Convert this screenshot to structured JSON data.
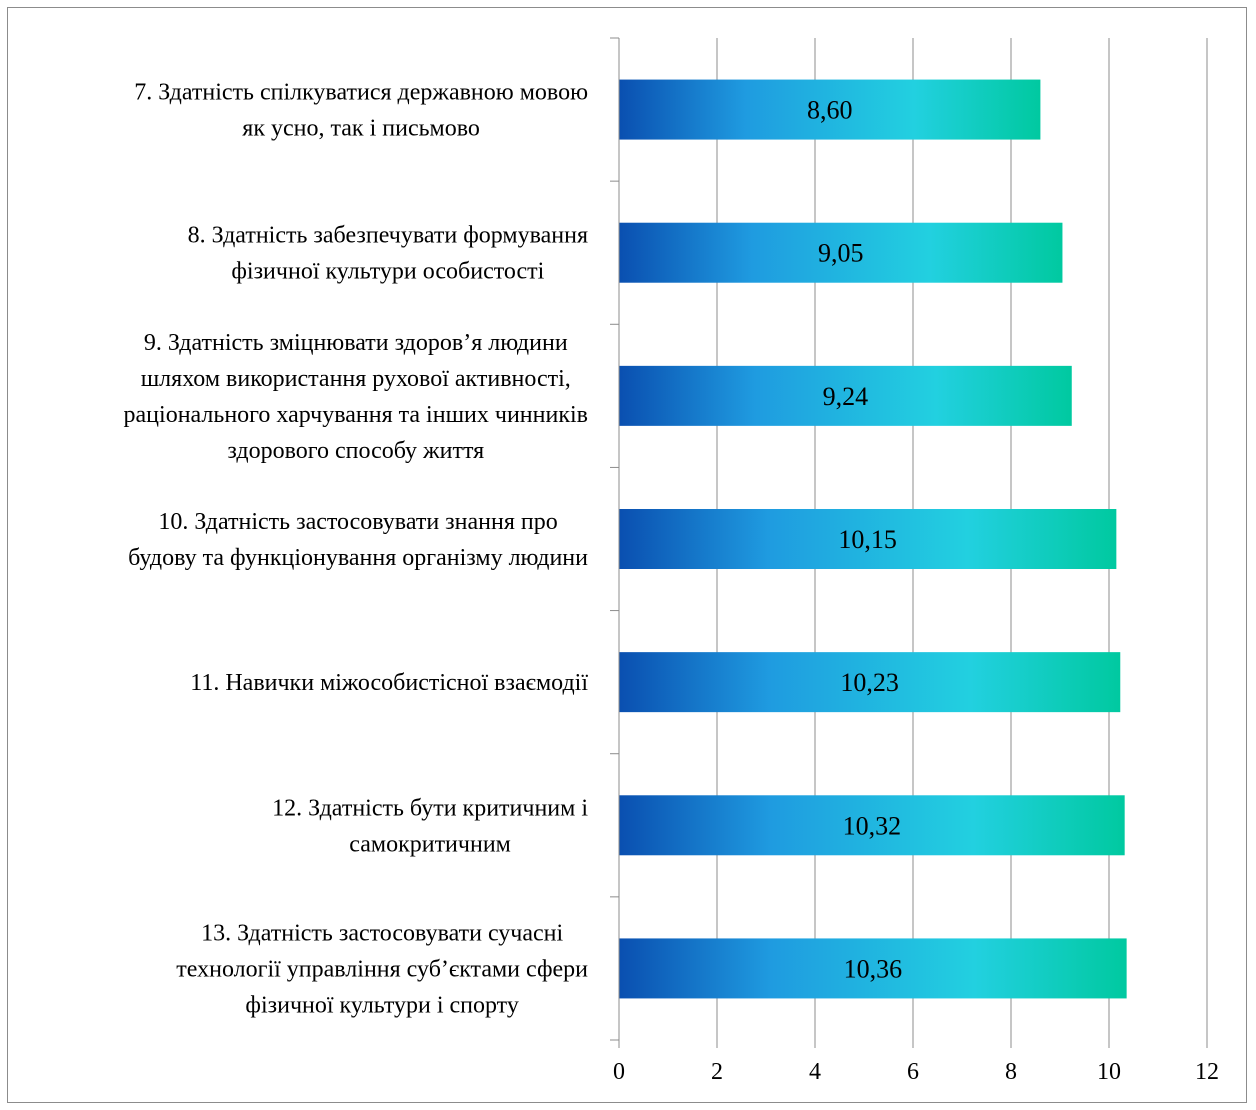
{
  "chart_data": {
    "type": "bar",
    "orientation": "horizontal",
    "title": "",
    "xlabel": "",
    "ylabel": "",
    "xlim": [
      0,
      12
    ],
    "x_ticks": [
      "0",
      "2",
      "4",
      "6",
      "8",
      "10",
      "12"
    ],
    "x_tick_values": [
      0,
      2,
      4,
      6,
      8,
      10,
      12
    ],
    "grid": "vertical",
    "legend": "none",
    "bar_gradient": [
      "#0a4fb0",
      "#1f9be0",
      "#22d0e0",
      "#00c9a0"
    ],
    "categories": [
      [
        "7. Здатність спілкуватися державною мовою",
        "як усно, так і письмово"
      ],
      [
        "8. Здатність забезпечувати формування",
        "фізичної культури особистості"
      ],
      [
        "9. Здатність зміцнювати здоров’я людини",
        "шляхом використання рухової активності,",
        "раціонального харчування та інших чинників",
        "здорового способу життя"
      ],
      [
        "10. Здатність застосовувати знання про",
        "будову та функціонування організму людини"
      ],
      [
        "11. Навички міжособистісної взаємодії"
      ],
      [
        "12. Здатність бути критичним і",
        "самокритичним"
      ],
      [
        "13. Здатність застосовувати сучасні",
        "технології управління суб’єктами сфери",
        "фізичної культури і спорту"
      ]
    ],
    "values": [
      8.6,
      9.05,
      9.24,
      10.15,
      10.23,
      10.32,
      10.36
    ],
    "value_labels": [
      "8,60",
      "9,05",
      "9,24",
      "10,15",
      "10,23",
      "10,32",
      "10,36"
    ]
  }
}
